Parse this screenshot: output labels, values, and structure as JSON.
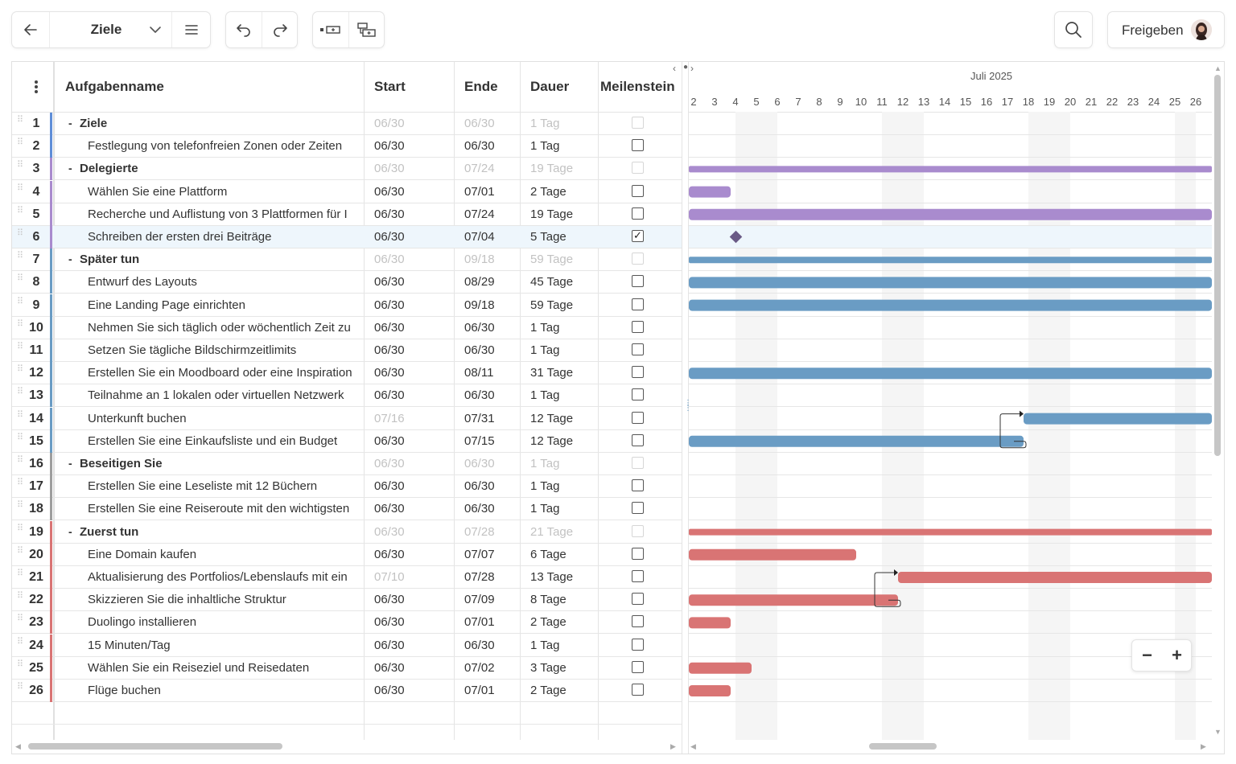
{
  "toolbar": {
    "title": "Ziele",
    "share_label": "Freigeben"
  },
  "grid": {
    "columns": {
      "name": "Aufgabenname",
      "start": "Start",
      "end": "Ende",
      "duration": "Dauer",
      "milestone": "Meilenstein"
    }
  },
  "timeline": {
    "month_label": "Juli 2025",
    "days": [
      "2",
      "3",
      "4",
      "5",
      "6",
      "7",
      "8",
      "9",
      "10",
      "11",
      "12",
      "13",
      "14",
      "15",
      "16",
      "17",
      "18",
      "19",
      "20",
      "21",
      "22",
      "23",
      "24",
      "25",
      "26"
    ]
  },
  "colors": {
    "ziele": "#5f8ed8",
    "delegierte": "#a98bce",
    "spaeter": "#6a9cc4",
    "beseitigen": "#9e9e9e",
    "zuerst": "#d97474"
  },
  "rows": [
    {
      "num": "1",
      "name": "Ziele",
      "start": "06/30",
      "end": "06/30",
      "dur": "1 Tag",
      "group": true,
      "milestone": false
    },
    {
      "num": "2",
      "name": "Festlegung von telefonfreien Zonen oder Zeiten",
      "start": "06/30",
      "end": "06/30",
      "dur": "1 Tag",
      "group": false,
      "milestone": false
    },
    {
      "num": "3",
      "name": "Delegierte",
      "start": "06/30",
      "end": "07/24",
      "dur": "19 Tage",
      "group": true,
      "milestone": false
    },
    {
      "num": "4",
      "name": "Wählen Sie eine Plattform",
      "start": "06/30",
      "end": "07/01",
      "dur": "2 Tage",
      "group": false,
      "milestone": false
    },
    {
      "num": "5",
      "name": "Recherche und Auflistung von 3 Plattformen für I",
      "start": "06/30",
      "end": "07/24",
      "dur": "19 Tage",
      "group": false,
      "milestone": false
    },
    {
      "num": "6",
      "name": "Schreiben der ersten drei Beiträge",
      "start": "06/30",
      "end": "07/04",
      "dur": "5 Tage",
      "group": false,
      "milestone": true
    },
    {
      "num": "7",
      "name": "Später tun",
      "start": "06/30",
      "end": "09/18",
      "dur": "59 Tage",
      "group": true,
      "milestone": false
    },
    {
      "num": "8",
      "name": "Entwurf des Layouts",
      "start": "06/30",
      "end": "08/29",
      "dur": "45 Tage",
      "group": false,
      "milestone": false
    },
    {
      "num": "9",
      "name": "Eine Landing Page einrichten",
      "start": "06/30",
      "end": "09/18",
      "dur": "59 Tage",
      "group": false,
      "milestone": false
    },
    {
      "num": "10",
      "name": "Nehmen Sie sich täglich oder wöchentlich Zeit zu",
      "start": "06/30",
      "end": "06/30",
      "dur": "1 Tag",
      "group": false,
      "milestone": false
    },
    {
      "num": "11",
      "name": "Setzen Sie tägliche Bildschirmzeitlimits",
      "start": "06/30",
      "end": "06/30",
      "dur": "1 Tag",
      "group": false,
      "milestone": false
    },
    {
      "num": "12",
      "name": "Erstellen Sie ein Moodboard oder eine Inspiration",
      "start": "06/30",
      "end": "08/11",
      "dur": "31 Tage",
      "group": false,
      "milestone": false
    },
    {
      "num": "13",
      "name": "Teilnahme an 1 lokalen oder virtuellen Netzwerk",
      "start": "06/30",
      "end": "06/30",
      "dur": "1 Tag",
      "group": false,
      "milestone": false
    },
    {
      "num": "14",
      "name": "Unterkunft buchen",
      "start": "07/16",
      "end": "07/31",
      "dur": "12 Tage",
      "group": false,
      "milestone": false,
      "start_dim": true
    },
    {
      "num": "15",
      "name": "Erstellen Sie eine Einkaufsliste und ein Budget",
      "start": "06/30",
      "end": "07/15",
      "dur": "12 Tage",
      "group": false,
      "milestone": false
    },
    {
      "num": "16",
      "name": "Beseitigen Sie",
      "start": "06/30",
      "end": "06/30",
      "dur": "1 Tag",
      "group": true,
      "milestone": false
    },
    {
      "num": "17",
      "name": "Erstellen Sie eine Leseliste mit 12 Büchern",
      "start": "06/30",
      "end": "06/30",
      "dur": "1 Tag",
      "group": false,
      "milestone": false
    },
    {
      "num": "18",
      "name": "Erstellen Sie eine Reiseroute mit den wichtigsten",
      "start": "06/30",
      "end": "06/30",
      "dur": "1 Tag",
      "group": false,
      "milestone": false
    },
    {
      "num": "19",
      "name": "Zuerst tun",
      "start": "06/30",
      "end": "07/28",
      "dur": "21 Tage",
      "group": true,
      "milestone": false
    },
    {
      "num": "20",
      "name": "Eine Domain kaufen",
      "start": "06/30",
      "end": "07/07",
      "dur": "6 Tage",
      "group": false,
      "milestone": false
    },
    {
      "num": "21",
      "name": "Aktualisierung des Portfolios/Lebenslaufs mit ein",
      "start": "07/10",
      "end": "07/28",
      "dur": "13 Tage",
      "group": false,
      "milestone": false,
      "start_dim": true
    },
    {
      "num": "22",
      "name": "Skizzieren Sie die inhaltliche Struktur",
      "start": "06/30",
      "end": "07/09",
      "dur": "8 Tage",
      "group": false,
      "milestone": false
    },
    {
      "num": "23",
      "name": "Duolingo installieren",
      "start": "06/30",
      "end": "07/01",
      "dur": "2 Tage",
      "group": false,
      "milestone": false
    },
    {
      "num": "24",
      "name": "15 Minuten/Tag",
      "start": "06/30",
      "end": "06/30",
      "dur": "1 Tag",
      "group": false,
      "milestone": false
    },
    {
      "num": "25",
      "name": "Wählen Sie ein Reiseziel und Reisedaten",
      "start": "06/30",
      "end": "07/02",
      "dur": "3 Tage",
      "group": false,
      "milestone": false
    },
    {
      "num": "26",
      "name": "Flüge buchen",
      "start": "06/30",
      "end": "07/01",
      "dur": "2 Tage",
      "group": false,
      "milestone": false
    }
  ]
}
